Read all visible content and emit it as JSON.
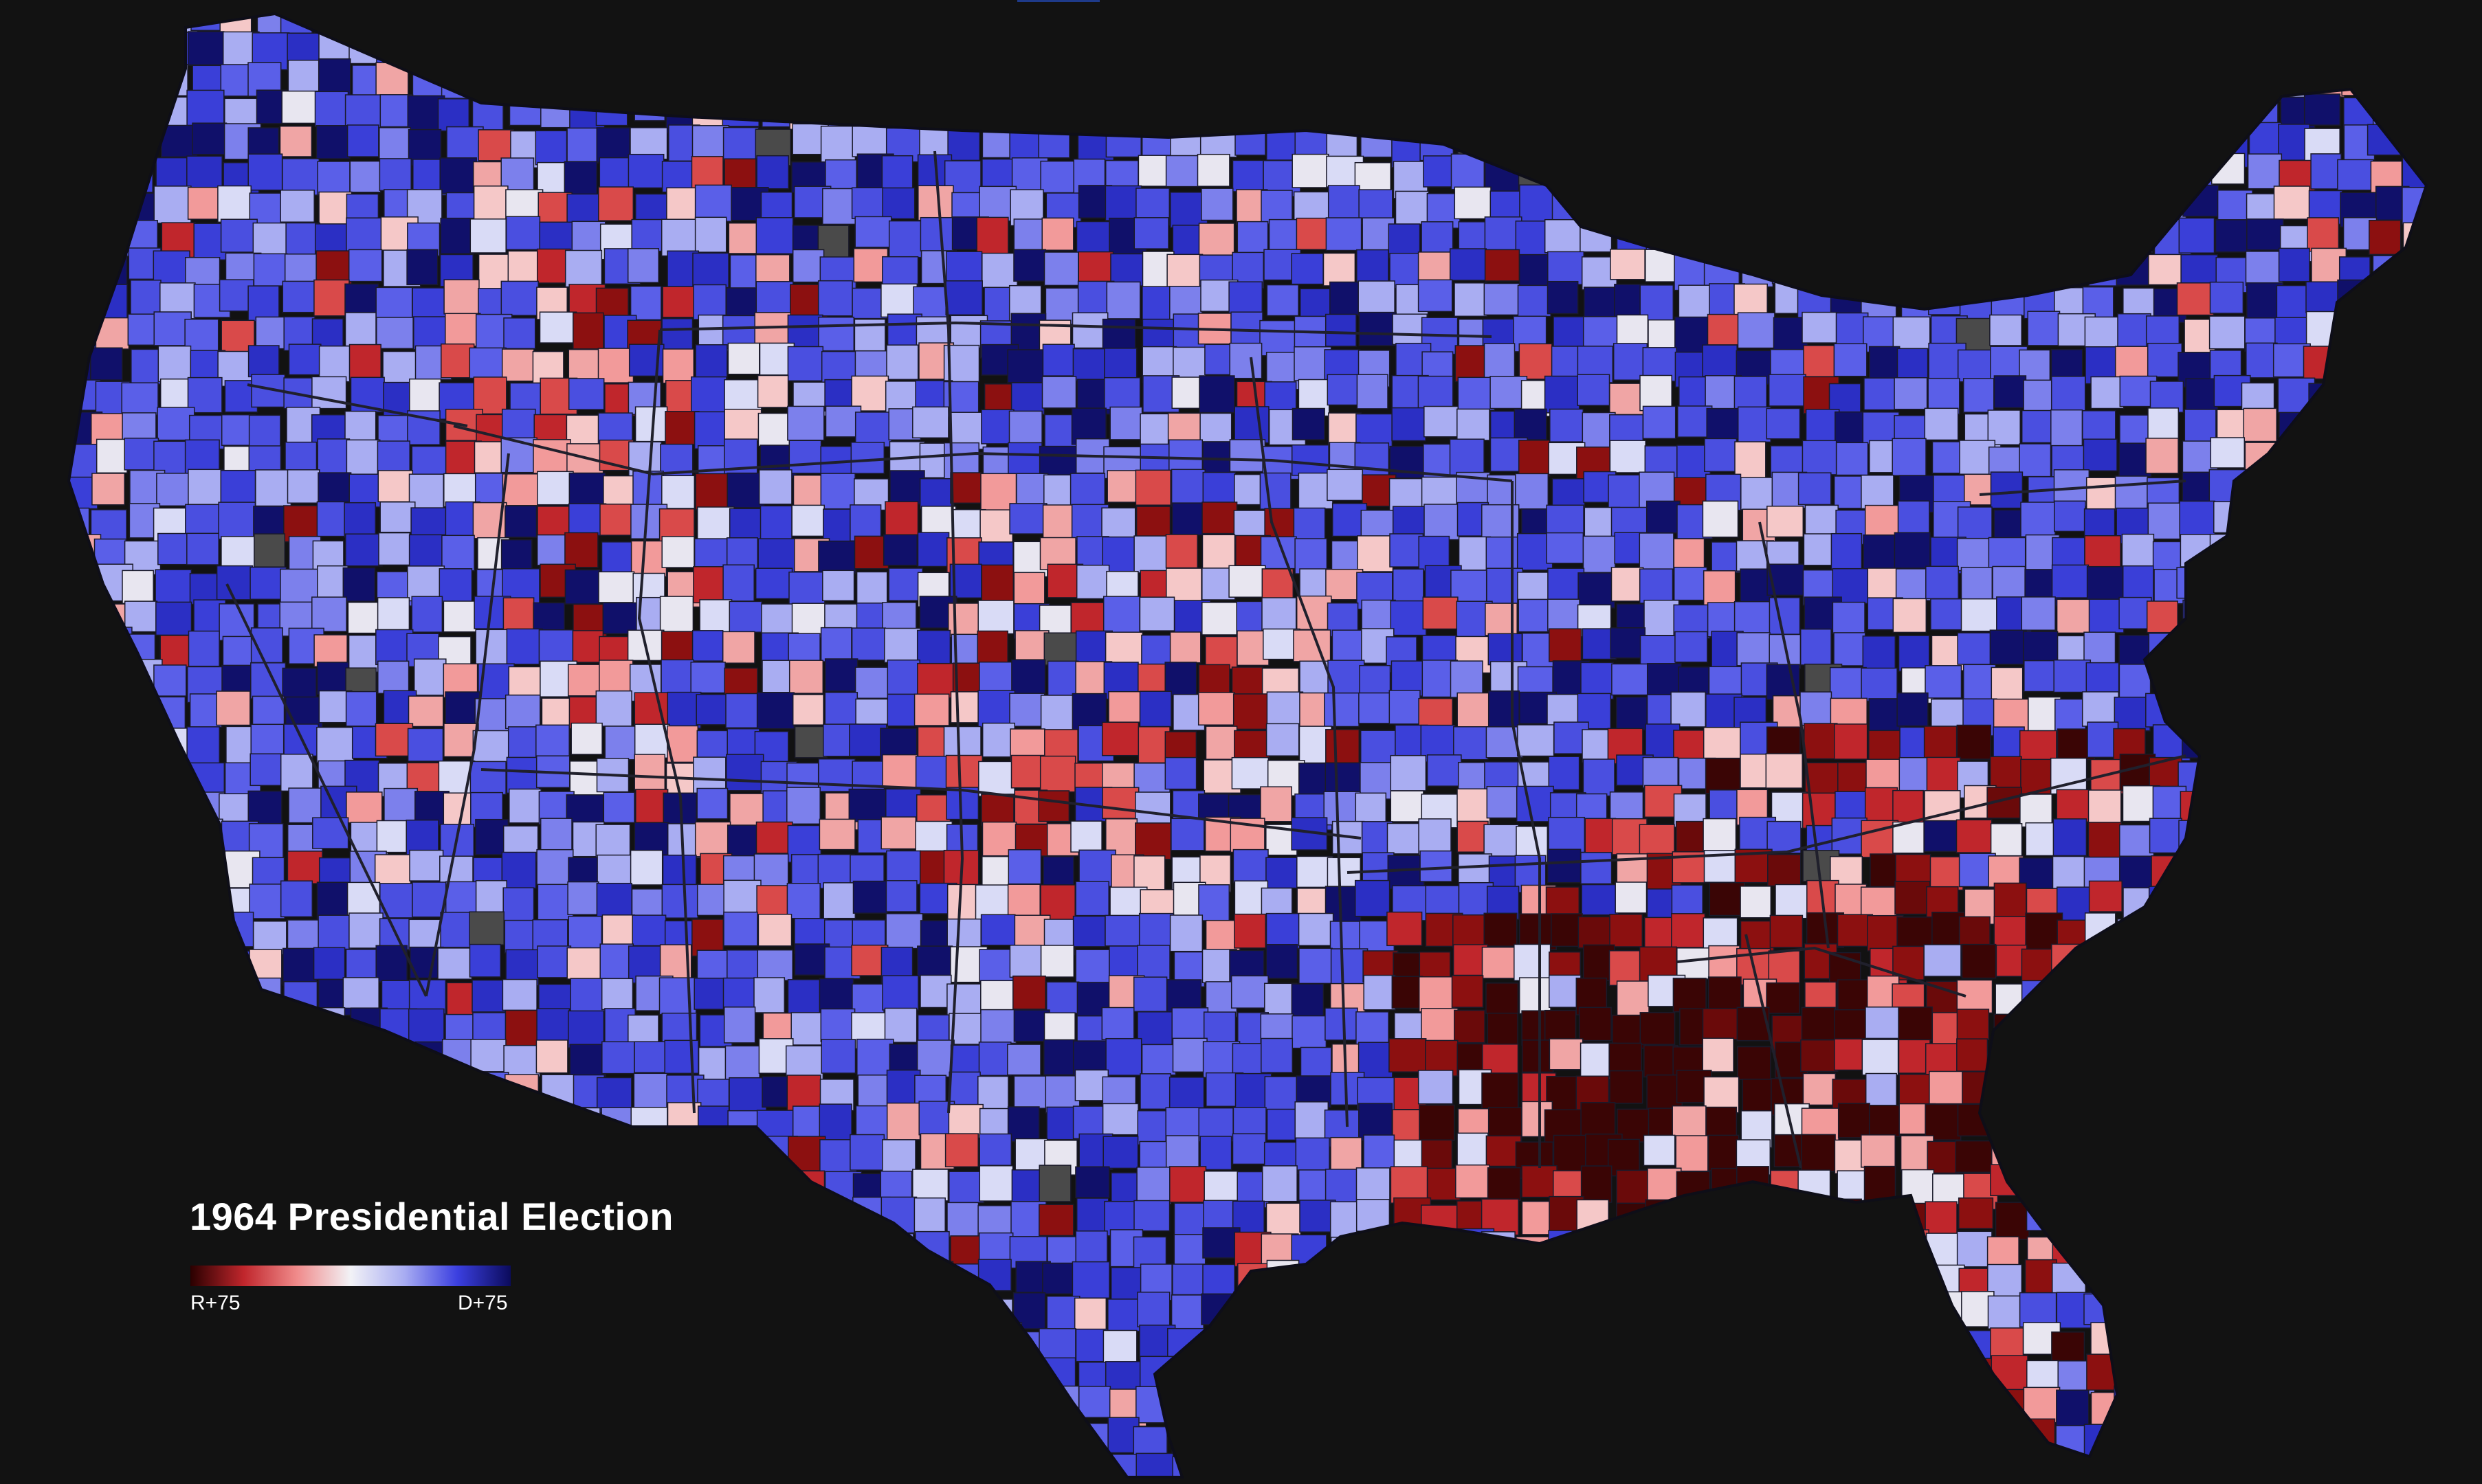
{
  "map": {
    "title": "1964 Presidential Election",
    "legend": {
      "left_label": "R+75",
      "right_label": "D+75",
      "gradient_stops": [
        "#2a0000",
        "#c0262c",
        "#f08b8b",
        "#f2f2f6",
        "#a9adf2",
        "#3b3fe0",
        "#0b0b5c"
      ]
    },
    "colors": {
      "background": "#121212",
      "no_data": "#4a4a4a",
      "border": "#1a1a2a",
      "rep_dark": "#3a0505",
      "rep_mid": "#c0262c",
      "rep_light": "#f29a9a",
      "neutral": "#e8e6f0",
      "dem_light": "#a9adf2",
      "dem_mid": "#4a4fe0",
      "dem_dark": "#10106a"
    }
  }
}
